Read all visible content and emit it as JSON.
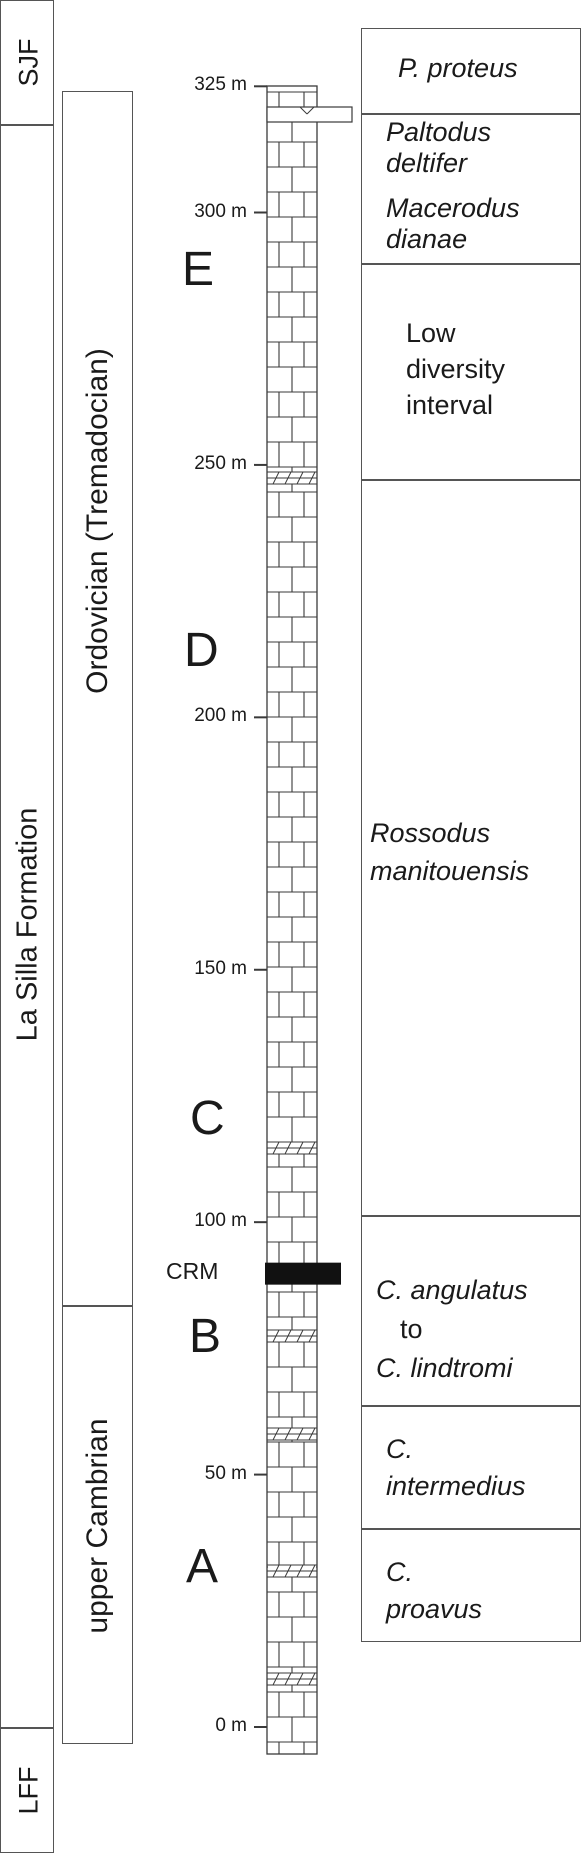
{
  "formations": {
    "sjf": "SJF",
    "la_silla": "La Silla Formation",
    "lff": "LFF"
  },
  "periods": {
    "ordovician": "Ordovician (Tremadocian)",
    "cambrian": "upper Cambrian"
  },
  "units": [
    "E",
    "D",
    "C",
    "B",
    "A"
  ],
  "scale": {
    "ticks": [
      {
        "value": 0,
        "label": "0 m"
      },
      {
        "value": 50,
        "label": "50 m"
      },
      {
        "value": 100,
        "label": "100 m"
      },
      {
        "value": 150,
        "label": "150 m"
      },
      {
        "value": 200,
        "label": "200 m"
      },
      {
        "value": 250,
        "label": "250 m"
      },
      {
        "value": 300,
        "label": "300 m"
      },
      {
        "value": 325,
        "label": "325 m"
      }
    ]
  },
  "marker": {
    "label": "CRM",
    "height_m": 90
  },
  "biozones": [
    {
      "line1": "P. proteus",
      "line2": "",
      "line3": ""
    },
    {
      "line1": "Paltodus",
      "line2": "deltifer",
      "line3": ""
    },
    {
      "line1": "Macerodus",
      "line2": "dianae",
      "line3": ""
    },
    {
      "line1": "Low",
      "line2": "diversity",
      "line3": "interval"
    },
    {
      "line1": "Rossodus",
      "line2": "manitouensis",
      "line3": ""
    },
    {
      "line1": "C. angulatus",
      "line2": "to",
      "line3": "C. lindtromi"
    },
    {
      "line1": "C.",
      "line2": "intermedius",
      "line3": ""
    },
    {
      "line1": "C.",
      "line2": "proavus",
      "line3": ""
    }
  ],
  "colors": {
    "line": "#3a3a3a",
    "marker": "#111111"
  }
}
